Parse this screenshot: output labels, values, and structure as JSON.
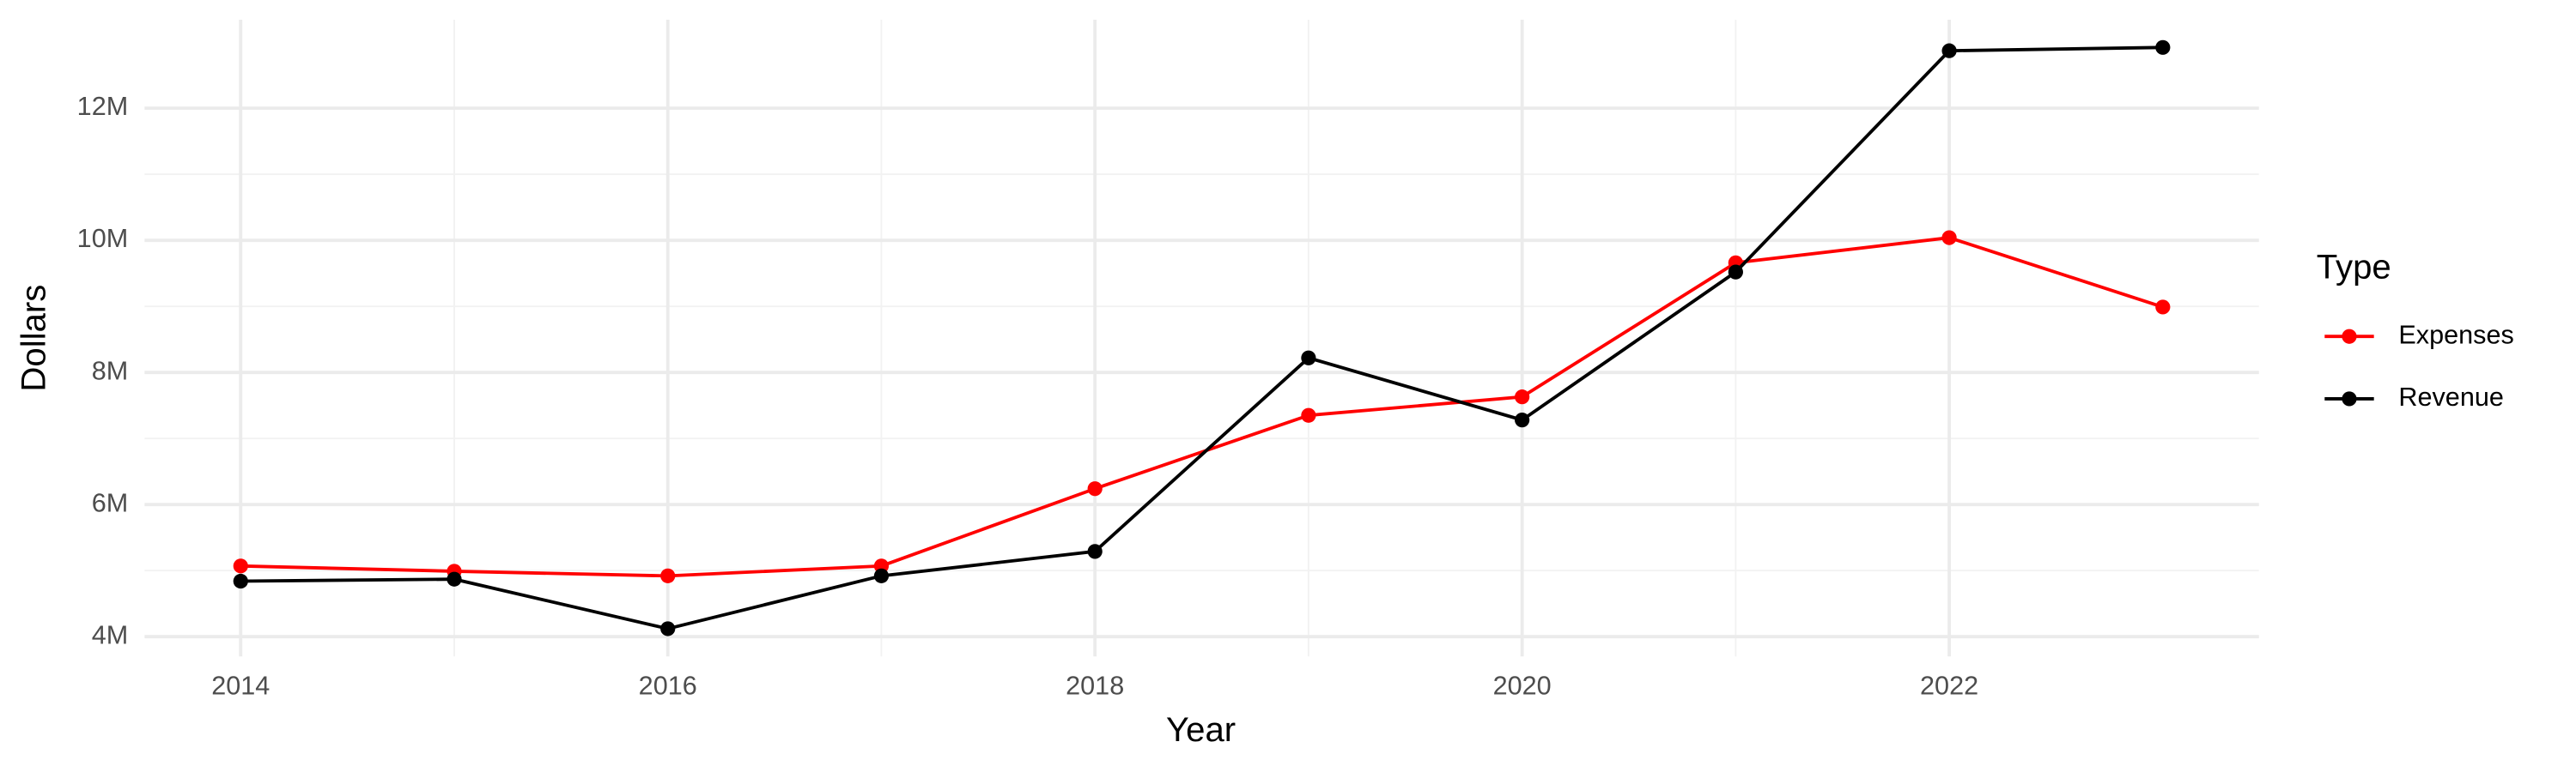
{
  "chart_data": {
    "type": "line",
    "x_label": "Year",
    "y_label": "Dollars",
    "legend_title": "Type",
    "legend": "right",
    "grid": true,
    "x": [
      2014,
      2015,
      2016,
      2017,
      2018,
      2019,
      2020,
      2021,
      2022,
      2023
    ],
    "series": [
      {
        "name": "Expenses",
        "color": "#ff0000",
        "values": [
          5070000,
          4990000,
          4920000,
          5070000,
          6240000,
          7350000,
          7630000,
          9660000,
          10040000,
          8990000
        ]
      },
      {
        "name": "Revenue",
        "color": "#000000",
        "values": [
          4840000,
          4870000,
          4120000,
          4920000,
          5290000,
          8220000,
          7280000,
          9520000,
          12870000,
          12920000
        ]
      }
    ],
    "xlim": [
      2013.55,
      2023.45
    ],
    "xticks": [
      2014,
      2016,
      2018,
      2020,
      2022
    ],
    "ylim": [
      3700000,
      13340000
    ],
    "yticks": [
      {
        "value": 4000000,
        "label": "4M"
      },
      {
        "value": 6000000,
        "label": "6M"
      },
      {
        "value": 8000000,
        "label": "8M"
      },
      {
        "value": 10000000,
        "label": "10M"
      },
      {
        "value": 12000000,
        "label": "12M"
      }
    ]
  }
}
